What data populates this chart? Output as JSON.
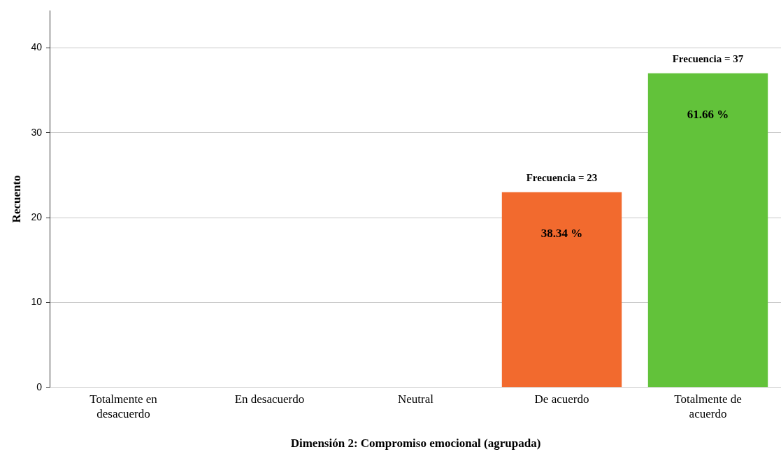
{
  "chart_data": {
    "type": "bar",
    "xlabel": "Dimensión 2: Compromiso emocional (agrupada)",
    "ylabel": "Recuento",
    "categories": [
      "Totalmente en desacuerdo",
      "En desacuerdo",
      "Neutral",
      "De acuerdo",
      "Totalmente de acuerdo"
    ],
    "values": [
      0,
      0,
      0,
      23,
      37
    ],
    "colors": [
      "#f26a2e",
      "#f26a2e",
      "#f26a2e",
      "#f26a2e",
      "#62c23a"
    ],
    "value_labels": [
      null,
      null,
      null,
      "Frecuencia = 23",
      "Frecuencia = 37"
    ],
    "annotations": [
      "38.34 %",
      "61.66 %"
    ],
    "ylim": [
      0,
      44.4
    ],
    "yticks": [
      0,
      10,
      20,
      30,
      40
    ],
    "grid": "y",
    "legend": false
  }
}
